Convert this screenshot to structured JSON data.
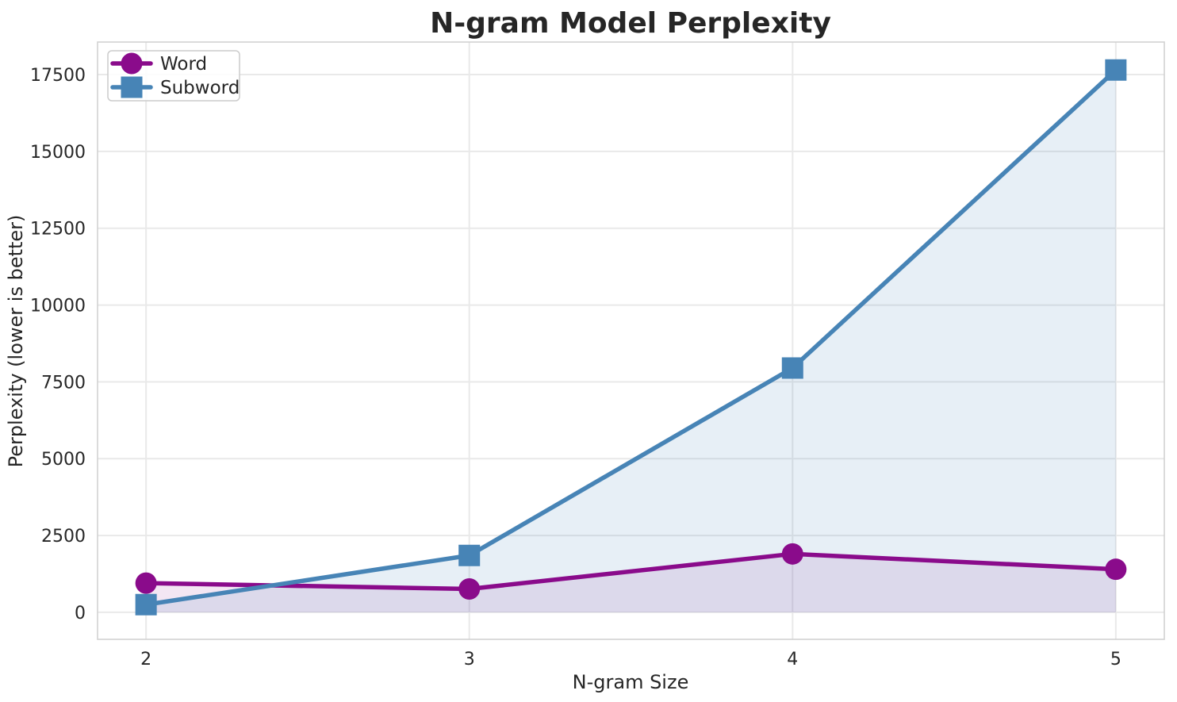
{
  "chart_data": {
    "type": "line",
    "title": "N-gram Model Perplexity",
    "xlabel": "N-gram Size",
    "ylabel": "Perplexity (lower is better)",
    "x": [
      2,
      3,
      4,
      5
    ],
    "series": [
      {
        "name": "Word",
        "marker": "circle",
        "color": "#8a0b8b",
        "fill_opacity": 0.1,
        "values": [
          950,
          760,
          1900,
          1400
        ]
      },
      {
        "name": "Subword",
        "marker": "square",
        "color": "#4784b6",
        "fill_opacity": 0.13,
        "values": [
          250,
          1850,
          7950,
          17650
        ]
      }
    ],
    "x_ticks": [
      2,
      3,
      4,
      5
    ],
    "x_tick_labels": [
      "2",
      "3",
      "4",
      "5"
    ],
    "y_ticks": [
      0,
      2500,
      5000,
      7500,
      10000,
      12500,
      15000,
      17500
    ],
    "y_tick_labels": [
      "0",
      "2500",
      "5000",
      "7500",
      "10000",
      "12500",
      "15000",
      "17500"
    ],
    "xlim": [
      1.85,
      5.15
    ],
    "ylim": [
      -880,
      18560
    ],
    "grid": true,
    "area_fill": true,
    "legend_position": "upper-left",
    "style": {
      "background": "#ffffff",
      "grid_color": "#e9e9e9",
      "spine_color": "#d2d2d2",
      "text_color": "#262626",
      "legend_border_color": "#cccccc"
    }
  }
}
